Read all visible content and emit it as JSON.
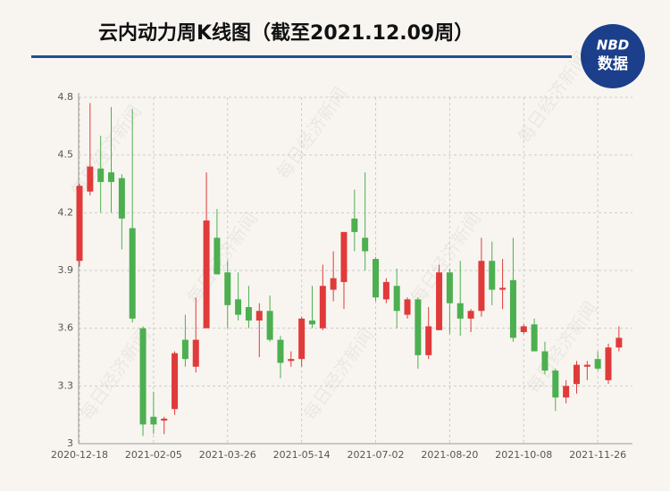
{
  "chart_data": {
    "type": "candlestick",
    "title": "云内动力周K线图（截至2021.12.09周）",
    "logo": {
      "top": "NBD",
      "bottom": "数据"
    },
    "watermark": "每日经济新闻",
    "categories": [
      "2020-12-18",
      null,
      null,
      null,
      null,
      null,
      null,
      "2021-02-05",
      null,
      null,
      null,
      null,
      null,
      null,
      "2021-03-26",
      null,
      null,
      null,
      null,
      null,
      null,
      "2021-05-14",
      null,
      null,
      null,
      null,
      null,
      null,
      "2021-07-02",
      null,
      null,
      null,
      null,
      null,
      null,
      "2021-08-20",
      null,
      null,
      null,
      null,
      null,
      null,
      "2021-10-08",
      null,
      null,
      null,
      null,
      null,
      null,
      "2021-11-26",
      null,
      null
    ],
    "open": [
      3.95,
      4.31,
      4.43,
      4.41,
      4.38,
      4.12,
      3.6,
      3.14,
      3.12,
      3.18,
      3.54,
      3.4,
      3.6,
      4.07,
      3.89,
      3.75,
      3.71,
      3.64,
      3.69,
      3.54,
      3.43,
      3.44,
      3.64,
      3.6,
      3.8,
      3.84,
      4.17,
      4.07,
      3.96,
      3.75,
      3.82,
      3.67,
      3.75,
      3.46,
      3.59,
      3.89,
      3.73,
      3.65,
      3.69,
      3.95,
      3.8,
      3.85,
      3.58,
      3.62,
      3.48,
      3.38,
      3.24,
      3.31,
      3.4,
      3.44,
      3.33,
      3.5
    ],
    "high": [
      4.35,
      4.77,
      4.6,
      4.75,
      4.4,
      4.74,
      3.61,
      3.27,
      3.14,
      3.48,
      3.67,
      3.76,
      4.41,
      4.22,
      3.95,
      3.89,
      3.82,
      3.73,
      3.77,
      3.56,
      3.48,
      3.66,
      3.82,
      3.93,
      4.0,
      4.1,
      4.32,
      4.41,
      3.97,
      3.86,
      3.91,
      3.76,
      3.76,
      3.71,
      3.93,
      3.91,
      3.95,
      3.7,
      4.07,
      4.05,
      3.96,
      4.07,
      3.62,
      3.65,
      3.53,
      3.39,
      3.33,
      3.43,
      3.43,
      3.48,
      3.52,
      3.61
    ],
    "low": [
      3.92,
      4.29,
      4.2,
      4.2,
      4.01,
      3.63,
      3.04,
      3.05,
      3.05,
      3.15,
      3.4,
      3.37,
      3.6,
      3.88,
      3.6,
      3.64,
      3.6,
      3.45,
      3.53,
      3.34,
      3.4,
      3.4,
      3.6,
      3.59,
      3.74,
      3.7,
      4.0,
      3.9,
      3.74,
      3.73,
      3.6,
      3.65,
      3.39,
      3.44,
      3.59,
      3.57,
      3.56,
      3.58,
      3.66,
      3.72,
      3.7,
      3.53,
      3.57,
      3.48,
      3.36,
      3.17,
      3.21,
      3.26,
      3.33,
      3.38,
      3.31,
      3.48
    ],
    "close": [
      4.34,
      4.44,
      4.36,
      4.36,
      4.17,
      3.65,
      3.1,
      3.1,
      3.13,
      3.47,
      3.44,
      3.54,
      4.16,
      3.88,
      3.72,
      3.67,
      3.64,
      3.69,
      3.54,
      3.42,
      3.44,
      3.65,
      3.62,
      3.82,
      3.86,
      4.1,
      4.1,
      4.0,
      3.76,
      3.84,
      3.69,
      3.75,
      3.46,
      3.61,
      3.89,
      3.73,
      3.65,
      3.69,
      3.95,
      3.8,
      3.81,
      3.55,
      3.61,
      3.48,
      3.38,
      3.24,
      3.3,
      3.41,
      3.41,
      3.39,
      3.5,
      3.55
    ],
    "up_color": "#e03a3a",
    "down_color": "#4caf50",
    "ylim": [
      3,
      4.8
    ],
    "yticks": [
      3,
      3.3,
      3.6,
      3.9,
      4.2,
      4.5,
      4.8
    ],
    "grid": true
  }
}
